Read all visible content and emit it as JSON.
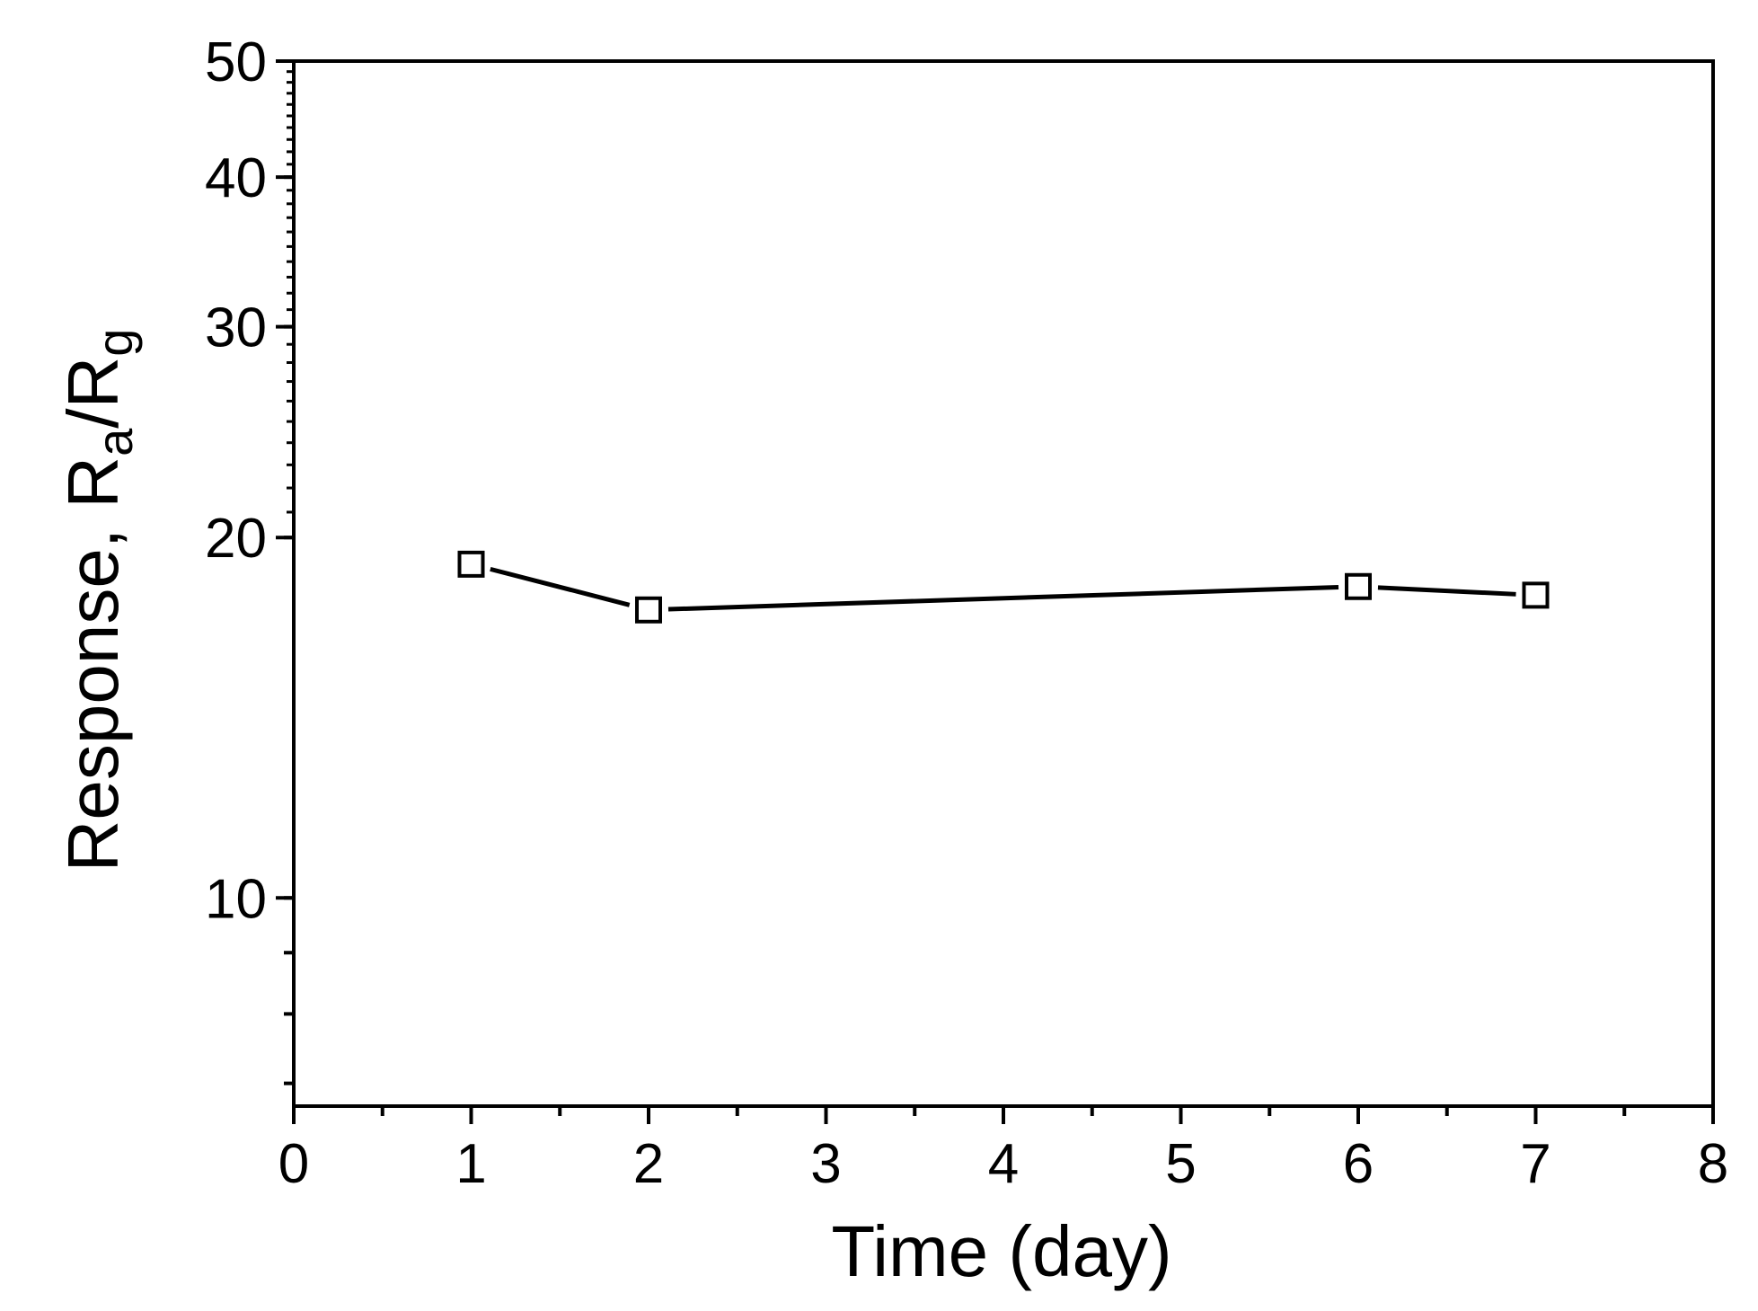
{
  "chart_data": {
    "type": "line",
    "xlabel": "Time (day)",
    "ylabel": {
      "prefix": "Response, R",
      "sub1": "a",
      "middle": "/R",
      "sub2": "g"
    },
    "x_scale": "linear",
    "y_scale": "log",
    "xlim": [
      0,
      8
    ],
    "ylim": [
      6.7,
      50
    ],
    "x_ticks": [
      0,
      1,
      2,
      3,
      4,
      5,
      6,
      7,
      8
    ],
    "x_tick_labels": [
      "0",
      "1",
      "2",
      "3",
      "4",
      "5",
      "6",
      "7",
      "8"
    ],
    "y_ticks": [
      10,
      20,
      30,
      40,
      50
    ],
    "y_tick_labels": [
      "10",
      "20",
      "30",
      "40",
      "50"
    ],
    "y_minor_ticks": [
      7,
      8,
      9,
      10,
      20,
      30,
      40,
      50
    ],
    "grid": false,
    "legend": "none",
    "series": [
      {
        "marker": "open-square",
        "color": "#000000",
        "x": [
          1,
          2,
          6,
          7
        ],
        "y": [
          19.0,
          17.4,
          18.2,
          17.9
        ]
      }
    ]
  }
}
